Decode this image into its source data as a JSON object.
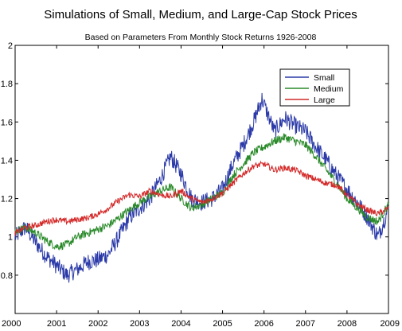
{
  "chart_data": {
    "type": "line",
    "title": "Simulations of Small, Medium, and Large-Cap Stock Prices",
    "subtitle": "Based on Parameters From Monthly Stock Returns 1926-2008",
    "xlabel": "",
    "ylabel": "",
    "xlim": [
      2000,
      2009
    ],
    "ylim": [
      0.6,
      2.0
    ],
    "xticks": [
      "2000",
      "2001",
      "2002",
      "2003",
      "2004",
      "2005",
      "2006",
      "2007",
      "2008",
      "2009"
    ],
    "yticks": [
      "0.8",
      "1",
      "1.2",
      "1.4",
      "1.6",
      "1.8",
      "2"
    ],
    "legend_position": "top-right",
    "grid": false,
    "colors": {
      "Small": "#2b3aa8",
      "Medium": "#2a8a2a",
      "Large": "#d42a2a"
    },
    "series": [
      {
        "name": "Small",
        "x": [
          2000.0,
          2000.25,
          2000.5,
          2000.75,
          2001.0,
          2001.25,
          2001.5,
          2001.75,
          2002.0,
          2002.25,
          2002.5,
          2002.75,
          2003.0,
          2003.25,
          2003.5,
          2003.75,
          2004.0,
          2004.25,
          2004.5,
          2004.75,
          2005.0,
          2005.25,
          2005.5,
          2005.75,
          2005.95,
          2006.25,
          2006.5,
          2006.75,
          2007.0,
          2007.25,
          2007.5,
          2007.75,
          2008.0,
          2008.25,
          2008.5,
          2008.75,
          2009.0
        ],
        "y": [
          1.0,
          1.05,
          0.97,
          0.9,
          0.85,
          0.8,
          0.83,
          0.87,
          0.88,
          0.91,
          1.0,
          1.1,
          1.15,
          1.2,
          1.3,
          1.42,
          1.33,
          1.2,
          1.18,
          1.2,
          1.25,
          1.38,
          1.48,
          1.6,
          1.72,
          1.55,
          1.62,
          1.58,
          1.55,
          1.47,
          1.4,
          1.32,
          1.25,
          1.18,
          1.1,
          1.0,
          1.15
        ]
      },
      {
        "name": "Medium",
        "x": [
          2000.0,
          2000.25,
          2000.5,
          2000.75,
          2001.0,
          2001.25,
          2001.5,
          2001.75,
          2002.0,
          2002.25,
          2002.5,
          2002.75,
          2003.0,
          2003.25,
          2003.5,
          2003.75,
          2004.0,
          2004.25,
          2004.5,
          2004.75,
          2005.0,
          2005.25,
          2005.5,
          2005.75,
          2006.0,
          2006.25,
          2006.5,
          2006.75,
          2007.0,
          2007.25,
          2007.5,
          2007.75,
          2008.0,
          2008.25,
          2008.5,
          2008.75,
          2009.0
        ],
        "y": [
          1.03,
          1.05,
          1.02,
          0.98,
          0.95,
          0.96,
          1.0,
          1.02,
          1.04,
          1.06,
          1.1,
          1.14,
          1.18,
          1.21,
          1.24,
          1.26,
          1.2,
          1.15,
          1.17,
          1.2,
          1.23,
          1.32,
          1.38,
          1.44,
          1.47,
          1.5,
          1.52,
          1.5,
          1.48,
          1.42,
          1.35,
          1.28,
          1.2,
          1.15,
          1.1,
          1.08,
          1.17
        ]
      },
      {
        "name": "Large",
        "x": [
          2000.0,
          2000.25,
          2000.5,
          2000.75,
          2001.0,
          2001.25,
          2001.5,
          2001.75,
          2002.0,
          2002.25,
          2002.5,
          2002.75,
          2003.0,
          2003.25,
          2003.5,
          2003.75,
          2004.0,
          2004.25,
          2004.5,
          2004.75,
          2005.0,
          2005.25,
          2005.5,
          2005.75,
          2006.0,
          2006.25,
          2006.5,
          2006.75,
          2007.0,
          2007.25,
          2007.5,
          2007.75,
          2008.0,
          2008.25,
          2008.5,
          2008.75,
          2009.0
        ],
        "y": [
          1.02,
          1.05,
          1.06,
          1.08,
          1.09,
          1.08,
          1.09,
          1.1,
          1.12,
          1.15,
          1.19,
          1.22,
          1.21,
          1.24,
          1.22,
          1.21,
          1.24,
          1.2,
          1.18,
          1.2,
          1.23,
          1.28,
          1.33,
          1.37,
          1.38,
          1.35,
          1.36,
          1.35,
          1.32,
          1.3,
          1.28,
          1.27,
          1.22,
          1.17,
          1.14,
          1.12,
          1.15
        ]
      }
    ]
  }
}
